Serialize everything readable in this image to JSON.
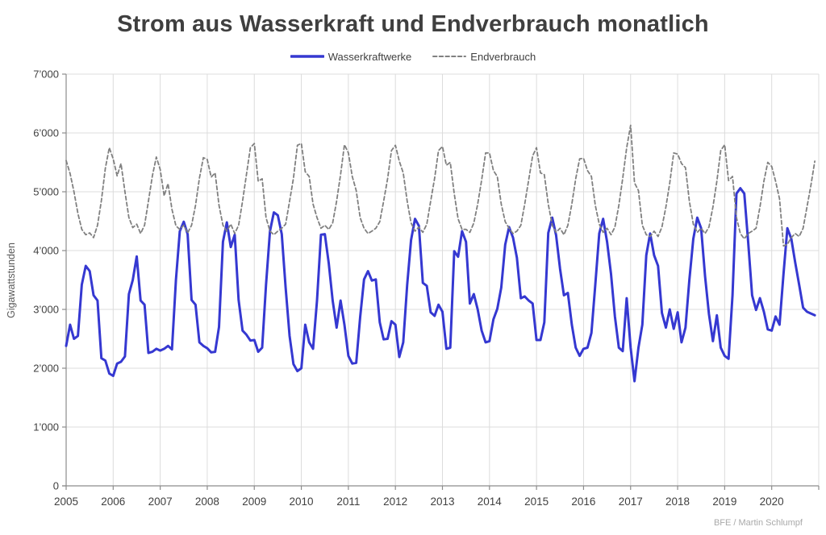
{
  "title": "Strom aus Wasserkraft und Endverbrauch monatlich",
  "footer": "BFE / Martin Schlumpf",
  "legend": [
    {
      "label": "Wasserkraftwerke",
      "color": "#3538d1",
      "dash": "none",
      "width": 3.5
    },
    {
      "label": "Endverbrauch",
      "color": "#808080",
      "dash": "4.5 3.2",
      "width": 2
    }
  ],
  "y_axis": {
    "label": "Gigawattstunden",
    "ticks": [
      "0",
      "1’000",
      "2’000",
      "3’000",
      "4’000",
      "5’000",
      "6’000",
      "7’000"
    ]
  },
  "x_axis": {
    "ticks": [
      "2005",
      "2006",
      "2007",
      "2008",
      "2009",
      "2010",
      "2011",
      "2012",
      "2013",
      "2014",
      "2015",
      "2016",
      "2017",
      "2018",
      "2019",
      "2020"
    ]
  },
  "colors": {
    "grid": "#dcdcdc",
    "axis": "#8c8c8c",
    "tick_text": "#404040",
    "title_text": "#3f3f3f",
    "footer_text": "#a9a9a9"
  },
  "chart_data": {
    "type": "line",
    "title": "Strom aus Wasserkraft und Endverbrauch monatlich",
    "xlabel": "",
    "ylabel": "Gigawattstunden",
    "x_unit": "month",
    "x_start": "2005-01",
    "x_end": "2020-12",
    "years": [
      2005,
      2006,
      2007,
      2008,
      2009,
      2010,
      2011,
      2012,
      2013,
      2014,
      2015,
      2016,
      2017,
      2018,
      2019,
      2020
    ],
    "ylim": [
      0,
      7000
    ],
    "grid": true,
    "legend_position": "top",
    "series": [
      {
        "name": "Wasserkraftwerke",
        "color": "#3538d1",
        "dash": "none",
        "width": 3,
        "values": [
          2380,
          2740,
          2500,
          2550,
          3420,
          3740,
          3650,
          3240,
          3150,
          2170,
          2130,
          1910,
          1870,
          2080,
          2110,
          2200,
          3260,
          3500,
          3900,
          3150,
          3080,
          2260,
          2280,
          2330,
          2300,
          2330,
          2380,
          2320,
          3500,
          4330,
          4490,
          4280,
          3160,
          3080,
          2440,
          2380,
          2340,
          2270,
          2280,
          2700,
          4150,
          4480,
          4060,
          4270,
          3160,
          2640,
          2570,
          2470,
          2480,
          2280,
          2350,
          3420,
          4330,
          4650,
          4600,
          4280,
          3370,
          2550,
          2070,
          1950,
          2000,
          2740,
          2440,
          2330,
          3150,
          4270,
          4280,
          3780,
          3150,
          2690,
          3150,
          2740,
          2210,
          2080,
          2090,
          2870,
          3510,
          3650,
          3490,
          3510,
          2780,
          2490,
          2500,
          2800,
          2740,
          2190,
          2440,
          3420,
          4180,
          4540,
          4420,
          3450,
          3400,
          2950,
          2890,
          3080,
          2960,
          2330,
          2350,
          3990,
          3895,
          4330,
          4150,
          3100,
          3260,
          3000,
          2640,
          2440,
          2460,
          2830,
          3010,
          3370,
          4100,
          4400,
          4220,
          3880,
          3190,
          3220,
          3150,
          3100,
          2480,
          2480,
          2780,
          4300,
          4560,
          4260,
          3690,
          3240,
          3280,
          2740,
          2350,
          2210,
          2330,
          2350,
          2600,
          3420,
          4290,
          4540,
          4150,
          3600,
          2880,
          2350,
          2290,
          3190,
          2350,
          1780,
          2350,
          2740,
          3920,
          4290,
          3920,
          3740,
          2940,
          2690,
          3000,
          2670,
          2950,
          2440,
          2690,
          3500,
          4200,
          4560,
          4380,
          3560,
          2920,
          2460,
          2900,
          2350,
          2210,
          2160,
          3240,
          4970,
          5060,
          4970,
          4150,
          3240,
          2990,
          3190,
          2960,
          2660,
          2640,
          2880,
          2740,
          3600,
          4380,
          4200,
          3800,
          3420,
          3030,
          2960,
          2930,
          2900
        ]
      },
      {
        "name": "Endverbrauch",
        "color": "#808080",
        "dash": "4.5 3.2",
        "width": 1.8,
        "values": [
          5530,
          5310,
          5000,
          4630,
          4360,
          4270,
          4300,
          4220,
          4430,
          4850,
          5400,
          5750,
          5560,
          5270,
          5480,
          5000,
          4560,
          4390,
          4450,
          4290,
          4430,
          4840,
          5270,
          5590,
          5380,
          4930,
          5140,
          4700,
          4420,
          4360,
          4430,
          4300,
          4430,
          4770,
          5230,
          5580,
          5550,
          5250,
          5320,
          4770,
          4430,
          4330,
          4450,
          4290,
          4430,
          4840,
          5290,
          5750,
          5820,
          5180,
          5220,
          4560,
          4330,
          4270,
          4330,
          4380,
          4450,
          4840,
          5230,
          5790,
          5820,
          5340,
          5260,
          4790,
          4560,
          4380,
          4430,
          4360,
          4470,
          4840,
          5290,
          5800,
          5660,
          5260,
          5020,
          4560,
          4380,
          4290,
          4330,
          4380,
          4490,
          4840,
          5220,
          5700,
          5790,
          5520,
          5320,
          4840,
          4470,
          4330,
          4400,
          4310,
          4450,
          4840,
          5230,
          5700,
          5770,
          5450,
          5500,
          4970,
          4540,
          4360,
          4360,
          4310,
          4470,
          4790,
          5200,
          5660,
          5660,
          5360,
          5260,
          4790,
          4490,
          4380,
          4290,
          4330,
          4430,
          4790,
          5200,
          5610,
          5750,
          5320,
          5290,
          4790,
          4430,
          4310,
          4380,
          4270,
          4430,
          4790,
          5220,
          5560,
          5570,
          5360,
          5260,
          4770,
          4450,
          4310,
          4380,
          4270,
          4400,
          4770,
          5230,
          5750,
          6130,
          5150,
          5020,
          4430,
          4270,
          4240,
          4330,
          4240,
          4400,
          4740,
          5150,
          5660,
          5640,
          5480,
          5410,
          4840,
          4450,
          4310,
          4380,
          4290,
          4400,
          4740,
          5180,
          5700,
          5800,
          5190,
          5260,
          4560,
          4290,
          4200,
          4290,
          4330,
          4380,
          4740,
          5180,
          5500,
          5430,
          5180,
          4880,
          4080,
          4105,
          4220,
          4290,
          4240,
          4380,
          4740,
          5110,
          5520
        ]
      }
    ]
  }
}
